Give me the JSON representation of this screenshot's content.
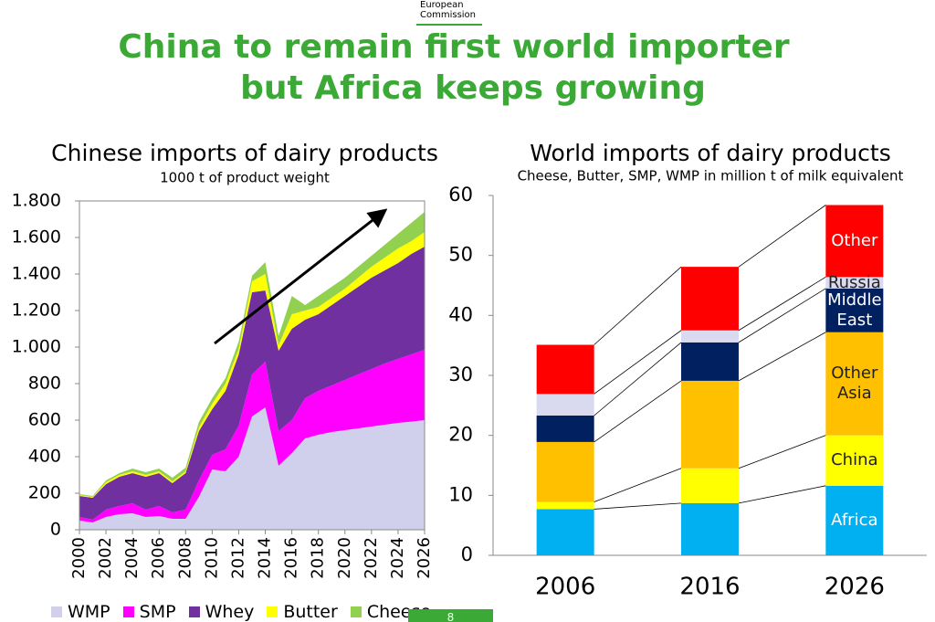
{
  "header": {
    "logo_lines": [
      "European",
      "Commission"
    ],
    "title_lines": [
      "China to remain first world importer",
      "but Africa keeps growing"
    ],
    "page_number": "8"
  },
  "chart_data": [
    {
      "type": "area",
      "stacked": true,
      "title": "Chinese imports of dairy products",
      "subtitle": "1000 t of product weight",
      "x": [
        2000,
        2001,
        2002,
        2003,
        2004,
        2005,
        2006,
        2007,
        2008,
        2009,
        2010,
        2011,
        2012,
        2013,
        2014,
        2015,
        2016,
        2017,
        2018,
        2019,
        2020,
        2021,
        2022,
        2023,
        2024,
        2025,
        2026
      ],
      "xlim": [
        2000,
        2026
      ],
      "xticks": [
        2000,
        2002,
        2004,
        2006,
        2008,
        2010,
        2012,
        2014,
        2016,
        2018,
        2020,
        2022,
        2024,
        2026
      ],
      "ylim": [
        0,
        1800
      ],
      "yticks": [
        0,
        200,
        400,
        600,
        800,
        {
          "value": 1000,
          "label": "1.000"
        },
        {
          "value": 1200,
          "label": "1.200"
        },
        {
          "value": 1400,
          "label": "1.400"
        },
        {
          "value": 1600,
          "label": "1.600"
        },
        {
          "value": 1800,
          "label": "1.800"
        }
      ],
      "legend": "bottom",
      "series": [
        {
          "name": "WMP",
          "color": "#d0d0ec",
          "values": [
            50,
            40,
            70,
            85,
            90,
            70,
            75,
            60,
            60,
            180,
            330,
            320,
            400,
            620,
            670,
            350,
            420,
            500,
            520,
            535,
            545,
            555,
            565,
            575,
            585,
            592,
            600
          ]
        },
        {
          "name": "SMP",
          "color": "#ff00ff",
          "values": [
            20,
            15,
            40,
            45,
            55,
            40,
            55,
            35,
            50,
            90,
            80,
            120,
            170,
            230,
            250,
            190,
            180,
            220,
            240,
            255,
            275,
            295,
            315,
            335,
            350,
            368,
            385
          ]
        },
        {
          "name": "Whey",
          "color": "#7030a0",
          "values": [
            115,
            120,
            140,
            160,
            165,
            180,
            180,
            160,
            200,
            270,
            250,
            320,
            390,
            450,
            390,
            440,
            500,
            430,
            420,
            440,
            460,
            480,
            500,
            510,
            525,
            550,
            565
          ]
        },
        {
          "name": "Butter",
          "color": "#ffff00",
          "values": [
            5,
            5,
            10,
            10,
            10,
            10,
            10,
            10,
            10,
            20,
            30,
            40,
            30,
            60,
            90,
            30,
            80,
            50,
            40,
            40,
            40,
            50,
            60,
            70,
            80,
            70,
            80
          ]
        },
        {
          "name": "Cheese",
          "color": "#92d050",
          "values": [
            5,
            5,
            10,
            10,
            15,
            15,
            15,
            20,
            20,
            30,
            30,
            30,
            40,
            30,
            65,
            50,
            100,
            30,
            60,
            60,
            60,
            60,
            60,
            70,
            80,
            100,
            110
          ]
        }
      ]
    },
    {
      "type": "bar",
      "stacked": true,
      "title": "World imports of dairy products",
      "subtitle": "Cheese, Butter, SMP, WMP in million t of milk equivalent",
      "categories": [
        "2006",
        "2016",
        "2026"
      ],
      "ylim": [
        0,
        60
      ],
      "yticks": [
        0,
        10,
        20,
        30,
        40,
        50,
        60
      ],
      "legend": "inside",
      "series": [
        {
          "name": "Africa",
          "color": "#00b0f0",
          "values": [
            7.7,
            8.7,
            11.6
          ]
        },
        {
          "name": "China",
          "color": "#ffff00",
          "values": [
            1.2,
            5.8,
            8.4
          ]
        },
        {
          "name": "Other Asia",
          "color": "#ffc000",
          "values": [
            10,
            14.6,
            17.2
          ]
        },
        {
          "name": "Middle East",
          "color": "#002060",
          "values": [
            4.4,
            6.4,
            7.3
          ]
        },
        {
          "name": "Russia",
          "color": "#d9d9f0",
          "values": [
            3.6,
            2,
            1.9
          ]
        },
        {
          "name": "Other",
          "color": "#ff0000",
          "values": [
            8.2,
            10.6,
            12
          ]
        }
      ]
    }
  ]
}
